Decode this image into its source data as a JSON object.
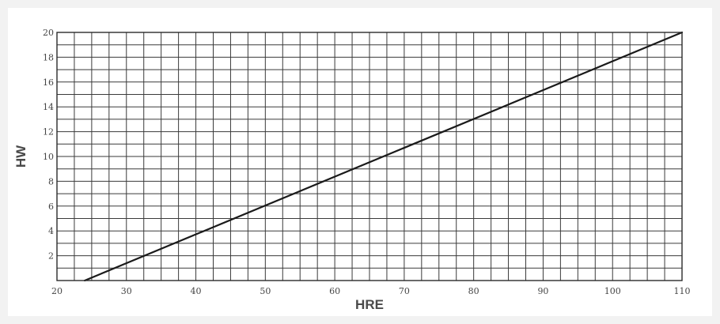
{
  "chart_data": {
    "type": "line",
    "xlabel": "HRE",
    "ylabel": "HW",
    "xlim": [
      20,
      110
    ],
    "ylim": [
      0,
      20
    ],
    "x_ticks": [
      "20",
      "30",
      "40",
      "50",
      "60",
      "70",
      "80",
      "90",
      "100",
      "110"
    ],
    "y_ticks": [
      "2",
      "4",
      "6",
      "8",
      "10",
      "12",
      "14",
      "16",
      "18",
      "20"
    ],
    "grid": true,
    "minor_x_step": 2.5,
    "minor_y_step": 1,
    "series": [
      {
        "x": [
          24,
          110
        ],
        "y": [
          0,
          20
        ],
        "color": "#1a1a1a"
      }
    ],
    "colors": {
      "grid": "#3a3a3a",
      "line": "#1a1a1a",
      "frame": "#2a2a2a"
    }
  }
}
